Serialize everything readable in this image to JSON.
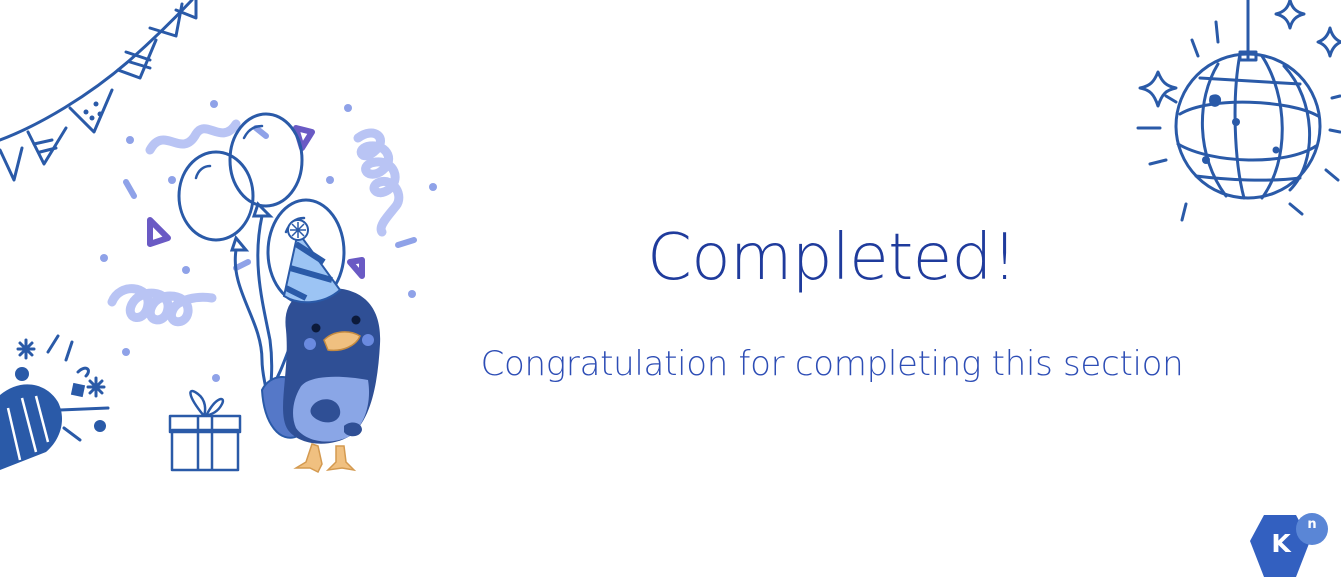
{
  "completion": {
    "title": "Completed!",
    "message": "Congratulation for completing this section"
  },
  "logo": {
    "letter": "K",
    "superscript": "n"
  },
  "colors": {
    "primary_text": "#1f3b9c",
    "secondary_text": "#2d4db5",
    "doodle_stroke": "#2a5aa8",
    "confetti_light": "#b9c4f4",
    "confetti_purple": "#6a5ac4",
    "bird_body": "#2f4f95",
    "bird_beak": "#f0c080",
    "logo_hex": "#3360c0"
  },
  "icons": {
    "bunting": "bunting-flags-icon",
    "balloons": "balloons-icon",
    "mascot": "party-bird-mascot",
    "gift": "gift-box-icon",
    "popper": "party-popper-icon",
    "disco_ball": "disco-ball-icon",
    "logo": "knative-logo-icon"
  }
}
